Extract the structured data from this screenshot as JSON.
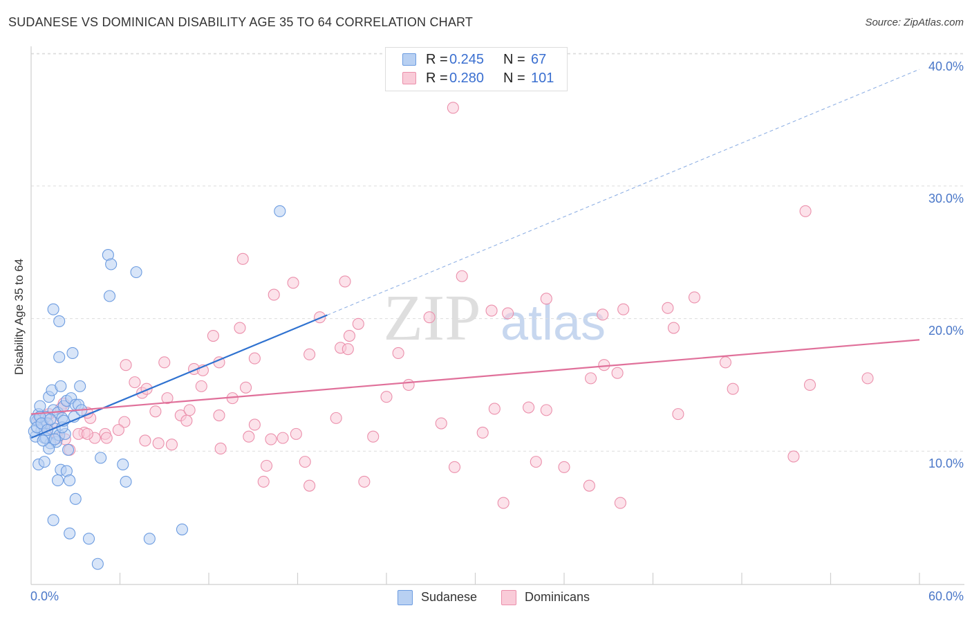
{
  "header": {
    "title": "SUDANESE VS DOMINICAN DISABILITY AGE 35 TO 64 CORRELATION CHART",
    "source": "Source: ZipAtlas.com"
  },
  "stats": {
    "r_label": "R =",
    "n_label": "N =",
    "rows": [
      {
        "r": "0.245",
        "n": "67",
        "fill": "#b8d0f2",
        "stroke": "#6b9be0"
      },
      {
        "r": "0.280",
        "n": "101",
        "fill": "#f9cbd8",
        "stroke": "#eb8fab"
      }
    ]
  },
  "watermark": {
    "zip": "ZIP",
    "atlas": "atlas"
  },
  "chart_data": {
    "type": "scatter",
    "title": "SUDANESE VS DOMINICAN DISABILITY AGE 35 TO 64 CORRELATION CHART",
    "xlabel": "",
    "ylabel": "Disability Age 35 to 64",
    "xlim": [
      0,
      60
    ],
    "ylim": [
      0,
      42
    ],
    "x_tick_labels": [
      "0.0%",
      "60.0%"
    ],
    "y_ticks": [
      10,
      20,
      30,
      40
    ],
    "y_tick_labels": [
      "10.0%",
      "20.0%",
      "30.0%",
      "40.0%"
    ],
    "grid": "horizontal dashed",
    "legend": "bottom-center",
    "series": [
      {
        "name": "Sudanese",
        "color": "#6b9be0",
        "fill": "#b8d0f2",
        "r": 0.245,
        "n": 67,
        "trend": {
          "x": [
            0,
            60
          ],
          "y": [
            11.0,
            38.8
          ],
          "solid_until_x": 20
        },
        "points": [
          [
            0.4,
            12.3
          ],
          [
            0.3,
            11.1
          ],
          [
            0.5,
            12.8
          ],
          [
            0.6,
            13.4
          ],
          [
            0.8,
            12.0
          ],
          [
            0.7,
            11.6
          ],
          [
            1.0,
            12.6
          ],
          [
            0.9,
            11.0
          ],
          [
            1.2,
            14.1
          ],
          [
            1.1,
            12.1
          ],
          [
            1.3,
            10.6
          ],
          [
            1.5,
            13.1
          ],
          [
            1.4,
            14.6
          ],
          [
            1.6,
            11.7
          ],
          [
            1.8,
            12.9
          ],
          [
            1.7,
            10.7
          ],
          [
            2.0,
            14.9
          ],
          [
            2.1,
            12.5
          ],
          [
            1.9,
            11.2
          ],
          [
            2.2,
            13.4
          ],
          [
            2.3,
            11.3
          ],
          [
            2.5,
            10.1
          ],
          [
            2.4,
            13.8
          ],
          [
            2.7,
            14.0
          ],
          [
            3.0,
            13.5
          ],
          [
            3.3,
            14.9
          ],
          [
            0.2,
            11.5
          ],
          [
            0.5,
            9.0
          ],
          [
            0.9,
            9.2
          ],
          [
            1.2,
            10.2
          ],
          [
            1.0,
            11.0
          ],
          [
            2.0,
            8.6
          ],
          [
            2.4,
            8.5
          ],
          [
            2.6,
            7.8
          ],
          [
            1.8,
            7.8
          ],
          [
            3.0,
            6.4
          ],
          [
            1.5,
            20.7
          ],
          [
            1.9,
            19.8
          ],
          [
            1.9,
            17.1
          ],
          [
            2.8,
            17.4
          ],
          [
            5.2,
            24.8
          ],
          [
            5.4,
            24.1
          ],
          [
            7.1,
            23.5
          ],
          [
            5.3,
            21.7
          ],
          [
            16.8,
            28.1
          ],
          [
            1.5,
            4.8
          ],
          [
            2.6,
            3.8
          ],
          [
            3.9,
            3.4
          ],
          [
            4.5,
            1.5
          ],
          [
            8.0,
            3.4
          ],
          [
            10.2,
            4.1
          ],
          [
            4.7,
            9.5
          ],
          [
            6.2,
            9.0
          ],
          [
            6.4,
            7.7
          ],
          [
            0.3,
            12.4
          ],
          [
            0.4,
            11.8
          ],
          [
            0.6,
            12.6
          ],
          [
            0.7,
            12.1
          ],
          [
            0.8,
            10.8
          ],
          [
            1.1,
            11.6
          ],
          [
            1.3,
            12.4
          ],
          [
            1.6,
            10.9
          ],
          [
            2.1,
            11.8
          ],
          [
            2.2,
            12.3
          ],
          [
            3.2,
            13.5
          ],
          [
            2.9,
            12.6
          ],
          [
            3.4,
            13.1
          ]
        ]
      },
      {
        "name": "Dominicans",
        "color": "#eb8fab",
        "fill": "#f9cbd8",
        "r": 0.28,
        "n": 101,
        "trend": {
          "x": [
            0,
            60
          ],
          "y": [
            12.8,
            18.4
          ]
        },
        "points": [
          [
            28.5,
            35.9
          ],
          [
            52.3,
            28.1
          ],
          [
            14.3,
            24.5
          ],
          [
            17.7,
            22.7
          ],
          [
            21.2,
            22.8
          ],
          [
            29.1,
            23.2
          ],
          [
            16.4,
            21.8
          ],
          [
            34.8,
            21.5
          ],
          [
            44.8,
            21.6
          ],
          [
            43.0,
            20.8
          ],
          [
            40.0,
            20.7
          ],
          [
            31.1,
            20.6
          ],
          [
            32.2,
            20.4
          ],
          [
            38.6,
            20.3
          ],
          [
            26.9,
            20.1
          ],
          [
            19.5,
            20.1
          ],
          [
            22.1,
            19.6
          ],
          [
            14.1,
            19.3
          ],
          [
            43.4,
            19.3
          ],
          [
            21.5,
            18.7
          ],
          [
            12.3,
            18.7
          ],
          [
            20.9,
            17.8
          ],
          [
            21.4,
            17.7
          ],
          [
            18.8,
            17.3
          ],
          [
            24.8,
            17.4
          ],
          [
            15.1,
            17.0
          ],
          [
            12.7,
            16.7
          ],
          [
            9.0,
            16.7
          ],
          [
            6.4,
            16.5
          ],
          [
            11.0,
            16.2
          ],
          [
            11.6,
            16.1
          ],
          [
            46.9,
            16.7
          ],
          [
            38.7,
            16.5
          ],
          [
            39.6,
            15.9
          ],
          [
            37.8,
            15.5
          ],
          [
            56.5,
            15.5
          ],
          [
            52.6,
            15.0
          ],
          [
            47.4,
            14.7
          ],
          [
            25.5,
            15.0
          ],
          [
            14.5,
            14.8
          ],
          [
            11.5,
            14.9
          ],
          [
            7.0,
            15.2
          ],
          [
            7.5,
            14.4
          ],
          [
            7.8,
            14.7
          ],
          [
            9.2,
            14.0
          ],
          [
            13.6,
            14.0
          ],
          [
            24.0,
            14.1
          ],
          [
            31.3,
            13.2
          ],
          [
            33.6,
            13.3
          ],
          [
            34.8,
            13.1
          ],
          [
            43.7,
            12.8
          ],
          [
            12.7,
            12.7
          ],
          [
            10.1,
            12.7
          ],
          [
            10.5,
            12.3
          ],
          [
            8.4,
            13.0
          ],
          [
            10.7,
            13.1
          ],
          [
            20.6,
            12.5
          ],
          [
            17.9,
            11.3
          ],
          [
            15.1,
            12.0
          ],
          [
            14.7,
            11.1
          ],
          [
            16.2,
            10.9
          ],
          [
            17.0,
            11.0
          ],
          [
            23.1,
            11.1
          ],
          [
            27.7,
            12.1
          ],
          [
            30.5,
            11.4
          ],
          [
            6.3,
            12.2
          ],
          [
            5.9,
            11.6
          ],
          [
            5.0,
            11.3
          ],
          [
            4.3,
            11.0
          ],
          [
            3.6,
            11.4
          ],
          [
            3.2,
            11.3
          ],
          [
            4.0,
            12.5
          ],
          [
            3.8,
            12.9
          ],
          [
            2.2,
            13.6
          ],
          [
            2.0,
            13.2
          ],
          [
            1.5,
            12.2
          ],
          [
            1.1,
            11.7
          ],
          [
            0.7,
            12.1
          ],
          [
            0.5,
            12.5
          ],
          [
            1.8,
            11.0
          ],
          [
            2.6,
            10.1
          ],
          [
            5.1,
            11.0
          ],
          [
            7.7,
            10.8
          ],
          [
            8.6,
            10.6
          ],
          [
            9.5,
            10.5
          ],
          [
            12.8,
            10.2
          ],
          [
            15.9,
            8.9
          ],
          [
            18.5,
            9.2
          ],
          [
            28.6,
            8.8
          ],
          [
            34.1,
            9.2
          ],
          [
            36.0,
            8.8
          ],
          [
            51.5,
            9.6
          ],
          [
            15.7,
            7.7
          ],
          [
            18.8,
            7.4
          ],
          [
            22.5,
            7.7
          ],
          [
            37.7,
            7.4
          ],
          [
            31.9,
            6.1
          ],
          [
            39.8,
            6.1
          ],
          [
            3.8,
            11.3
          ],
          [
            2.3,
            10.9
          ],
          [
            1.2,
            12.8
          ]
        ]
      }
    ]
  },
  "legend": {
    "items": [
      {
        "label": "Sudanese",
        "fill": "#b8d0f2",
        "stroke": "#6b9be0"
      },
      {
        "label": "Dominicans",
        "fill": "#f9cbd8",
        "stroke": "#eb8fab"
      }
    ]
  }
}
